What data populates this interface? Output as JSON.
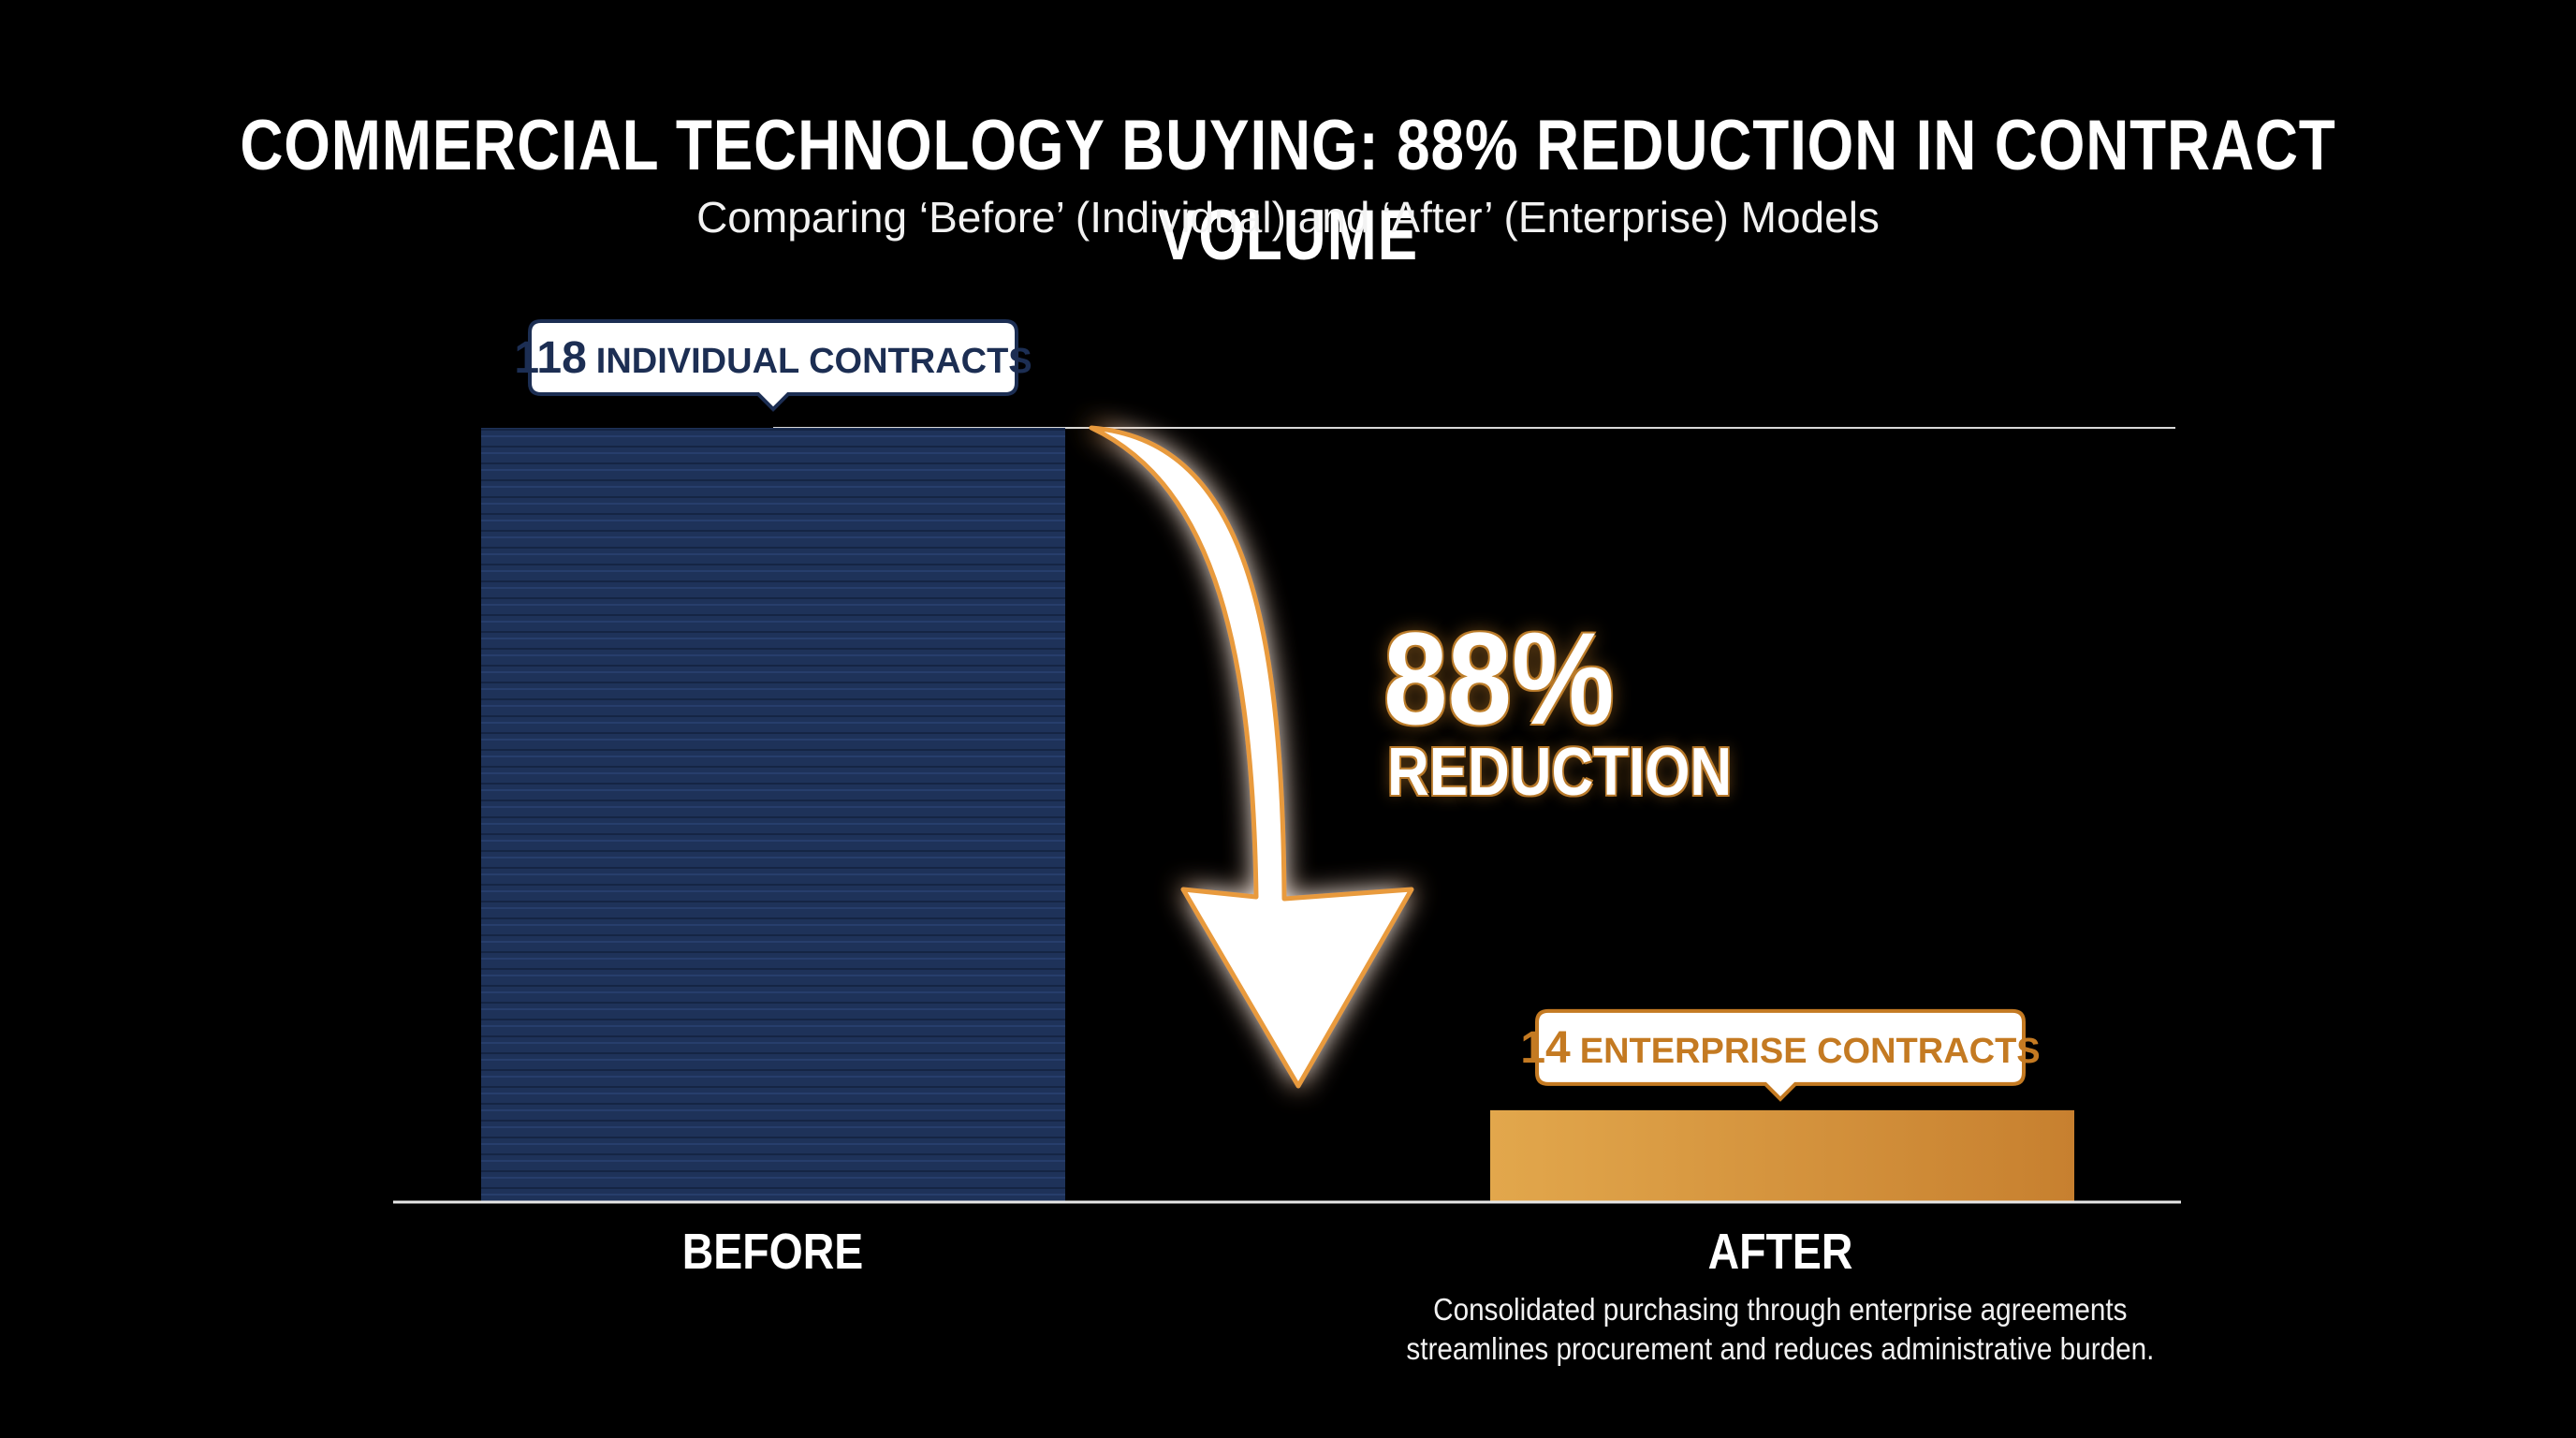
{
  "title": "COMMERCIAL TECHNOLOGY BUYING: 88% REDUCTION IN CONTRACT VOLUME",
  "subtitle": "Comparing ‘Before’ (Individual) and ‘After’ (Enterprise) Models",
  "reduction": {
    "percent_text": "88%",
    "label": "REDUCTION"
  },
  "after_note_line1": "Consolidated purchasing through enterprise agreements",
  "after_note_line2": "streamlines procurement and reduces administrative burden.",
  "colors": {
    "before_bar": "#1e3259",
    "after_bar_start": "#e2a74c",
    "after_bar_end": "#c7802f",
    "callout_before_text": "#1b2d52",
    "callout_after_text": "#c47a22",
    "arrow_glow": "#e89a3c"
  },
  "chart_data": {
    "type": "bar",
    "title": "COMMERCIAL TECHNOLOGY BUYING: 88% REDUCTION IN CONTRACT VOLUME",
    "subtitle": "Comparing ‘Before’ (Individual) and ‘After’ (Enterprise) Models",
    "categories": [
      "BEFORE",
      "AFTER"
    ],
    "values": [
      118,
      14
    ],
    "ylim": [
      0,
      118
    ],
    "grid": false,
    "annotations": [
      {
        "number": "118",
        "text": "INDIVIDUAL CONTRACTS"
      },
      {
        "number": "14",
        "text": "ENTERPRISE CONTRACTS"
      }
    ]
  }
}
